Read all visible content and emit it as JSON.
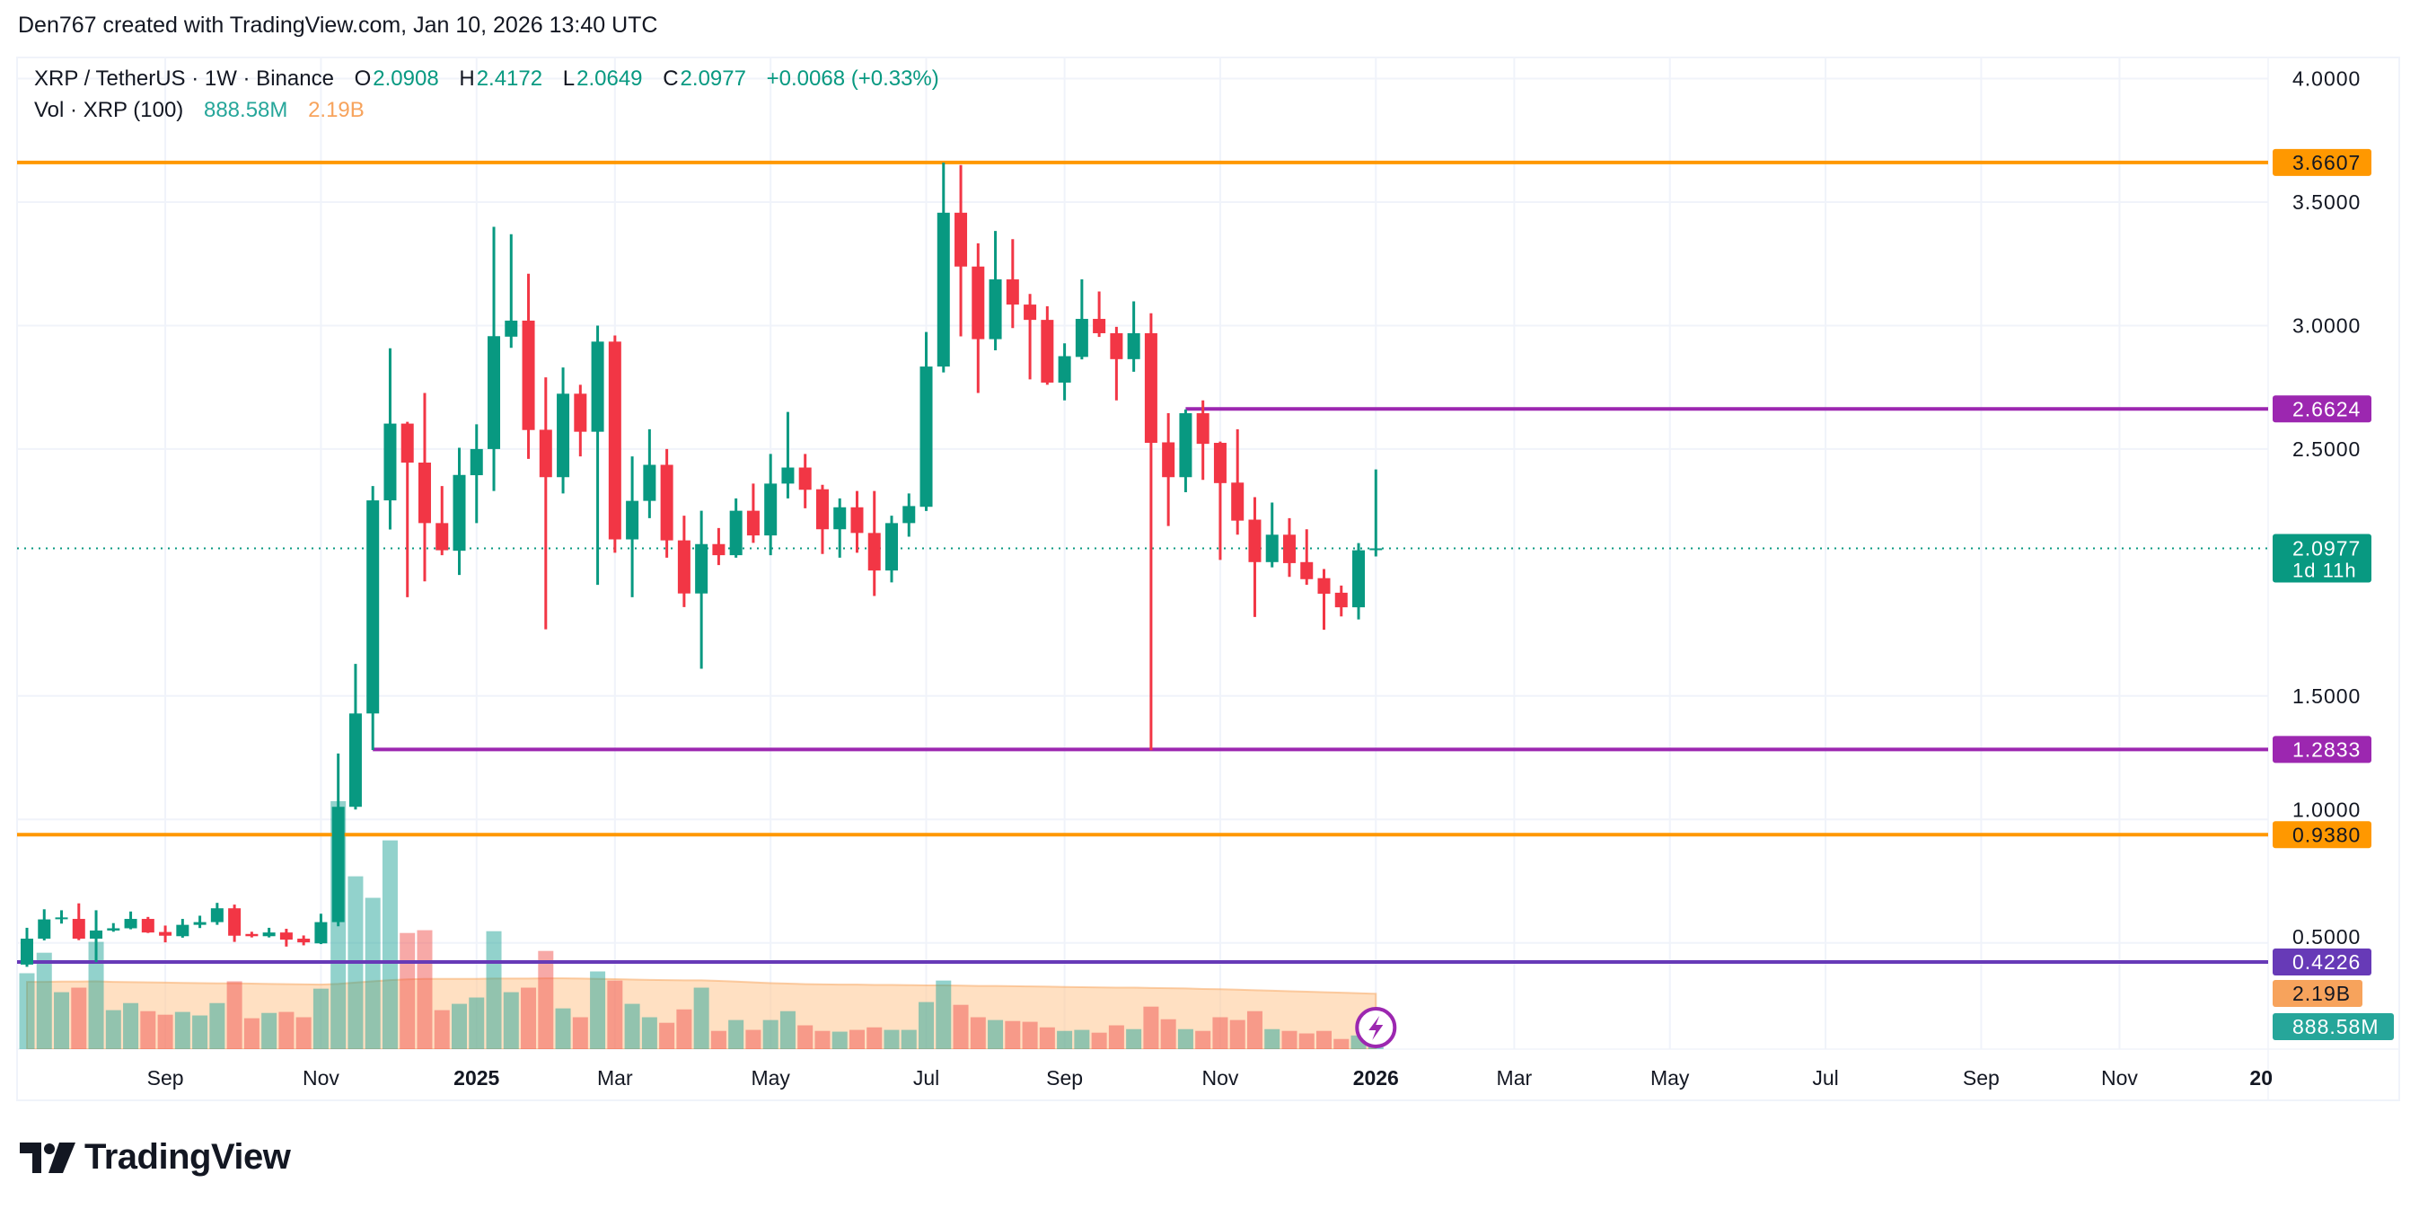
{
  "credit": "Den767 created with TradingView.com, Jan 10, 2026 13:40 UTC",
  "legend": {
    "symbol": "XRP / TetherUS · 1W · Binance",
    "o_label": "O",
    "o": "2.0908",
    "h_label": "H",
    "h": "2.4172",
    "l_label": "L",
    "l": "2.0649",
    "c_label": "C",
    "c": "2.0977",
    "change": "+0.0068 (+0.33%)",
    "vol_label": "Vol · XRP (100)",
    "vol": "888.58M",
    "vol_ma": "2.19B"
  },
  "logo": {
    "text": "TradingView"
  },
  "colors": {
    "up": "#089981",
    "down": "#f23645",
    "orange": "#ff9800",
    "purple": "#9c27b0",
    "indigo": "#673ab7",
    "vol_up": "#26a69a",
    "vol_down": "#ef5350",
    "vol_ma": "#f7a35c"
  },
  "chart_data": {
    "type": "candlestick",
    "interval": "1W",
    "ylim": [
      0.0,
      4.1
    ],
    "grid": true,
    "price_ticks": [
      "4.0000",
      "3.5000",
      "3.0000",
      "2.5000",
      "1.5000",
      "1.0000",
      "0.5000"
    ],
    "time_ticks": [
      {
        "label": "Sep",
        "date": "2024-09-02",
        "bold": false
      },
      {
        "label": "Nov",
        "date": "2024-11-04",
        "bold": false
      },
      {
        "label": "2025",
        "date": "2025-01-06",
        "bold": true
      },
      {
        "label": "Mar",
        "date": "2025-03-03",
        "bold": false
      },
      {
        "label": "May",
        "date": "2025-05-05",
        "bold": false
      },
      {
        "label": "Jul",
        "date": "2025-07-07",
        "bold": false
      },
      {
        "label": "Sep",
        "date": "2025-09-01",
        "bold": false
      },
      {
        "label": "Nov",
        "date": "2025-11-03",
        "bold": false
      },
      {
        "label": "2026",
        "date": "2026-01-05",
        "bold": true
      },
      {
        "label": "Mar",
        "date": "2026-03-02",
        "bold": false
      },
      {
        "label": "May",
        "date": "2026-05-04",
        "bold": false
      },
      {
        "label": "Jul",
        "date": "2026-07-06",
        "bold": false
      },
      {
        "label": "Sep",
        "date": "2026-09-07",
        "bold": false
      },
      {
        "label": "Nov",
        "date": "2026-11-02",
        "bold": false
      },
      {
        "label": "20",
        "date": "2027-01-04",
        "bold": true
      }
    ],
    "first_week": "2024-07-08",
    "ohlc": [
      [
        0.412,
        0.561,
        0.403,
        0.517
      ],
      [
        0.517,
        0.636,
        0.51,
        0.595
      ],
      [
        0.597,
        0.632,
        0.578,
        0.603
      ],
      [
        0.597,
        0.66,
        0.511,
        0.517
      ],
      [
        0.517,
        0.632,
        0.422,
        0.55
      ],
      [
        0.55,
        0.58,
        0.545,
        0.559
      ],
      [
        0.559,
        0.627,
        0.555,
        0.597
      ],
      [
        0.597,
        0.605,
        0.54,
        0.542
      ],
      [
        0.544,
        0.57,
        0.502,
        0.529
      ],
      [
        0.527,
        0.597,
        0.521,
        0.573
      ],
      [
        0.573,
        0.61,
        0.56,
        0.584
      ],
      [
        0.584,
        0.662,
        0.573,
        0.64
      ],
      [
        0.64,
        0.655,
        0.504,
        0.529
      ],
      [
        0.536,
        0.545,
        0.522,
        0.527
      ],
      [
        0.527,
        0.561,
        0.522,
        0.542
      ],
      [
        0.542,
        0.557,
        0.485,
        0.513
      ],
      [
        0.517,
        0.53,
        0.49,
        0.502
      ],
      [
        0.498,
        0.618,
        0.495,
        0.584
      ],
      [
        0.584,
        1.267,
        0.567,
        1.051
      ],
      [
        1.051,
        1.63,
        1.04,
        1.429
      ],
      [
        1.429,
        2.35,
        1.281,
        2.292
      ],
      [
        2.292,
        2.908,
        2.174,
        2.603
      ],
      [
        2.603,
        2.61,
        1.9,
        2.445
      ],
      [
        2.445,
        2.727,
        1.964,
        2.2
      ],
      [
        2.2,
        2.35,
        2.07,
        2.09
      ],
      [
        2.088,
        2.505,
        1.99,
        2.395
      ],
      [
        2.394,
        2.6,
        2.2,
        2.5
      ],
      [
        2.5,
        3.4,
        2.33,
        2.957
      ],
      [
        2.955,
        3.37,
        2.91,
        3.02
      ],
      [
        3.02,
        3.21,
        2.46,
        2.577
      ],
      [
        2.578,
        2.79,
        1.77,
        2.386
      ],
      [
        2.386,
        2.83,
        2.32,
        2.724
      ],
      [
        2.724,
        2.76,
        2.47,
        2.57
      ],
      [
        2.57,
        3.0,
        1.95,
        2.935
      ],
      [
        2.935,
        2.96,
        2.08,
        2.134
      ],
      [
        2.134,
        2.47,
        1.9,
        2.29
      ],
      [
        2.29,
        2.58,
        2.22,
        2.436
      ],
      [
        2.436,
        2.5,
        2.06,
        2.13
      ],
      [
        2.13,
        2.23,
        1.86,
        1.915
      ],
      [
        1.915,
        2.25,
        1.61,
        2.115
      ],
      [
        2.115,
        2.18,
        2.03,
        2.07
      ],
      [
        2.07,
        2.3,
        2.06,
        2.25
      ],
      [
        2.25,
        2.36,
        2.12,
        2.15
      ],
      [
        2.15,
        2.48,
        2.07,
        2.36
      ],
      [
        2.36,
        2.65,
        2.3,
        2.425
      ],
      [
        2.425,
        2.48,
        2.26,
        2.335
      ],
      [
        2.337,
        2.355,
        2.075,
        2.175
      ],
      [
        2.175,
        2.3,
        2.06,
        2.264
      ],
      [
        2.264,
        2.33,
        2.08,
        2.16
      ],
      [
        2.16,
        2.33,
        1.905,
        2.008
      ],
      [
        2.008,
        2.23,
        1.96,
        2.2
      ],
      [
        2.2,
        2.32,
        2.145,
        2.269
      ],
      [
        2.266,
        2.974,
        2.249,
        2.834
      ],
      [
        2.834,
        3.66,
        2.81,
        3.457
      ],
      [
        3.457,
        3.65,
        2.956,
        3.239
      ],
      [
        3.239,
        3.333,
        2.727,
        2.945
      ],
      [
        2.945,
        3.383,
        2.9,
        3.187
      ],
      [
        3.187,
        3.35,
        2.99,
        3.085
      ],
      [
        3.085,
        3.128,
        2.782,
        3.023
      ],
      [
        3.023,
        3.078,
        2.76,
        2.769
      ],
      [
        2.769,
        2.928,
        2.697,
        2.876
      ],
      [
        2.873,
        3.187,
        2.863,
        3.027
      ],
      [
        3.027,
        3.138,
        2.954,
        2.969
      ],
      [
        2.969,
        2.995,
        2.697,
        2.864
      ],
      [
        2.864,
        3.098,
        2.813,
        2.969
      ],
      [
        2.969,
        3.05,
        1.28,
        2.525
      ],
      [
        2.527,
        2.645,
        2.188,
        2.386
      ],
      [
        2.386,
        2.66,
        2.325,
        2.645
      ],
      [
        2.645,
        2.697,
        2.375,
        2.521
      ],
      [
        2.525,
        2.53,
        2.051,
        2.362
      ],
      [
        2.364,
        2.58,
        2.153,
        2.21
      ],
      [
        2.214,
        2.305,
        1.82,
        2.042
      ],
      [
        2.042,
        2.283,
        2.021,
        2.153
      ],
      [
        2.153,
        2.22,
        1.982,
        2.038
      ],
      [
        2.042,
        2.175,
        1.95,
        1.973
      ],
      [
        1.977,
        2.014,
        1.768,
        1.914
      ],
      [
        1.918,
        1.947,
        1.822,
        1.859
      ],
      [
        1.859,
        2.119,
        1.81,
        2.09
      ],
      [
        2.0908,
        2.4172,
        2.0649,
        2.0977
      ]
    ],
    "volume_billions": [
      3.0,
      3.81,
      2.25,
      2.43,
      4.24,
      1.54,
      1.82,
      1.5,
      1.36,
      1.47,
      1.33,
      1.82,
      2.68,
      1.22,
      1.43,
      1.47,
      1.26,
      2.39,
      9.8,
      6.83,
      5.98,
      8.25,
      4.59,
      4.7,
      1.54,
      1.79,
      2.04,
      4.66,
      2.25,
      2.43,
      3.88,
      1.61,
      1.26,
      3.07,
      2.71,
      1.79,
      1.26,
      1.04,
      1.57,
      2.43,
      0.72,
      1.15,
      0.76,
      1.15,
      1.5,
      0.94,
      0.72,
      0.69,
      0.76,
      0.86,
      0.76,
      0.76,
      1.86,
      2.71,
      1.75,
      1.26,
      1.15,
      1.11,
      1.08,
      0.86,
      0.72,
      0.76,
      0.65,
      0.94,
      0.79,
      1.68,
      1.18,
      0.79,
      0.72,
      1.26,
      1.15,
      1.5,
      0.79,
      0.72,
      0.62,
      0.72,
      0.4,
      0.54,
      0.889
    ],
    "volume_ma_billions": [
      2.66,
      2.66,
      2.67,
      2.67,
      2.68,
      2.66,
      2.65,
      2.64,
      2.63,
      2.62,
      2.61,
      2.6,
      2.6,
      2.59,
      2.58,
      2.57,
      2.56,
      2.55,
      2.58,
      2.63,
      2.68,
      2.73,
      2.76,
      2.78,
      2.78,
      2.78,
      2.78,
      2.79,
      2.79,
      2.79,
      2.8,
      2.8,
      2.79,
      2.78,
      2.77,
      2.75,
      2.74,
      2.73,
      2.72,
      2.72,
      2.7,
      2.67,
      2.64,
      2.61,
      2.59,
      2.57,
      2.56,
      2.55,
      2.55,
      2.54,
      2.54,
      2.53,
      2.52,
      2.52,
      2.51,
      2.5,
      2.5,
      2.49,
      2.48,
      2.47,
      2.46,
      2.45,
      2.44,
      2.43,
      2.43,
      2.42,
      2.41,
      2.4,
      2.38,
      2.37,
      2.35,
      2.33,
      2.31,
      2.29,
      2.27,
      2.25,
      2.23,
      2.21,
      2.19
    ],
    "horizontal_lines": [
      {
        "price": 3.6607,
        "label": "3.6607",
        "color": "#ff9800",
        "text_color": "#131722",
        "from": null
      },
      {
        "price": 2.6624,
        "label": "2.6624",
        "color": "#9c27b0",
        "text_color": "#ffffff",
        "from": "2025-10-20"
      },
      {
        "price": 1.2833,
        "label": "1.2833",
        "color": "#9c27b0",
        "text_color": "#ffffff",
        "from": "2024-11-25"
      },
      {
        "price": 0.938,
        "label": "0.9380",
        "color": "#ff9800",
        "text_color": "#131722",
        "from": null
      },
      {
        "price": 0.4226,
        "label": "0.4226",
        "color": "#673ab7",
        "text_color": "#ffffff",
        "from": null
      }
    ],
    "last_price": {
      "price": 2.0977,
      "label": "2.0977",
      "countdown": "1d 11h",
      "color": "#089981"
    },
    "volume_badges": {
      "ma": "2.19B",
      "vol": "888.58M"
    }
  }
}
